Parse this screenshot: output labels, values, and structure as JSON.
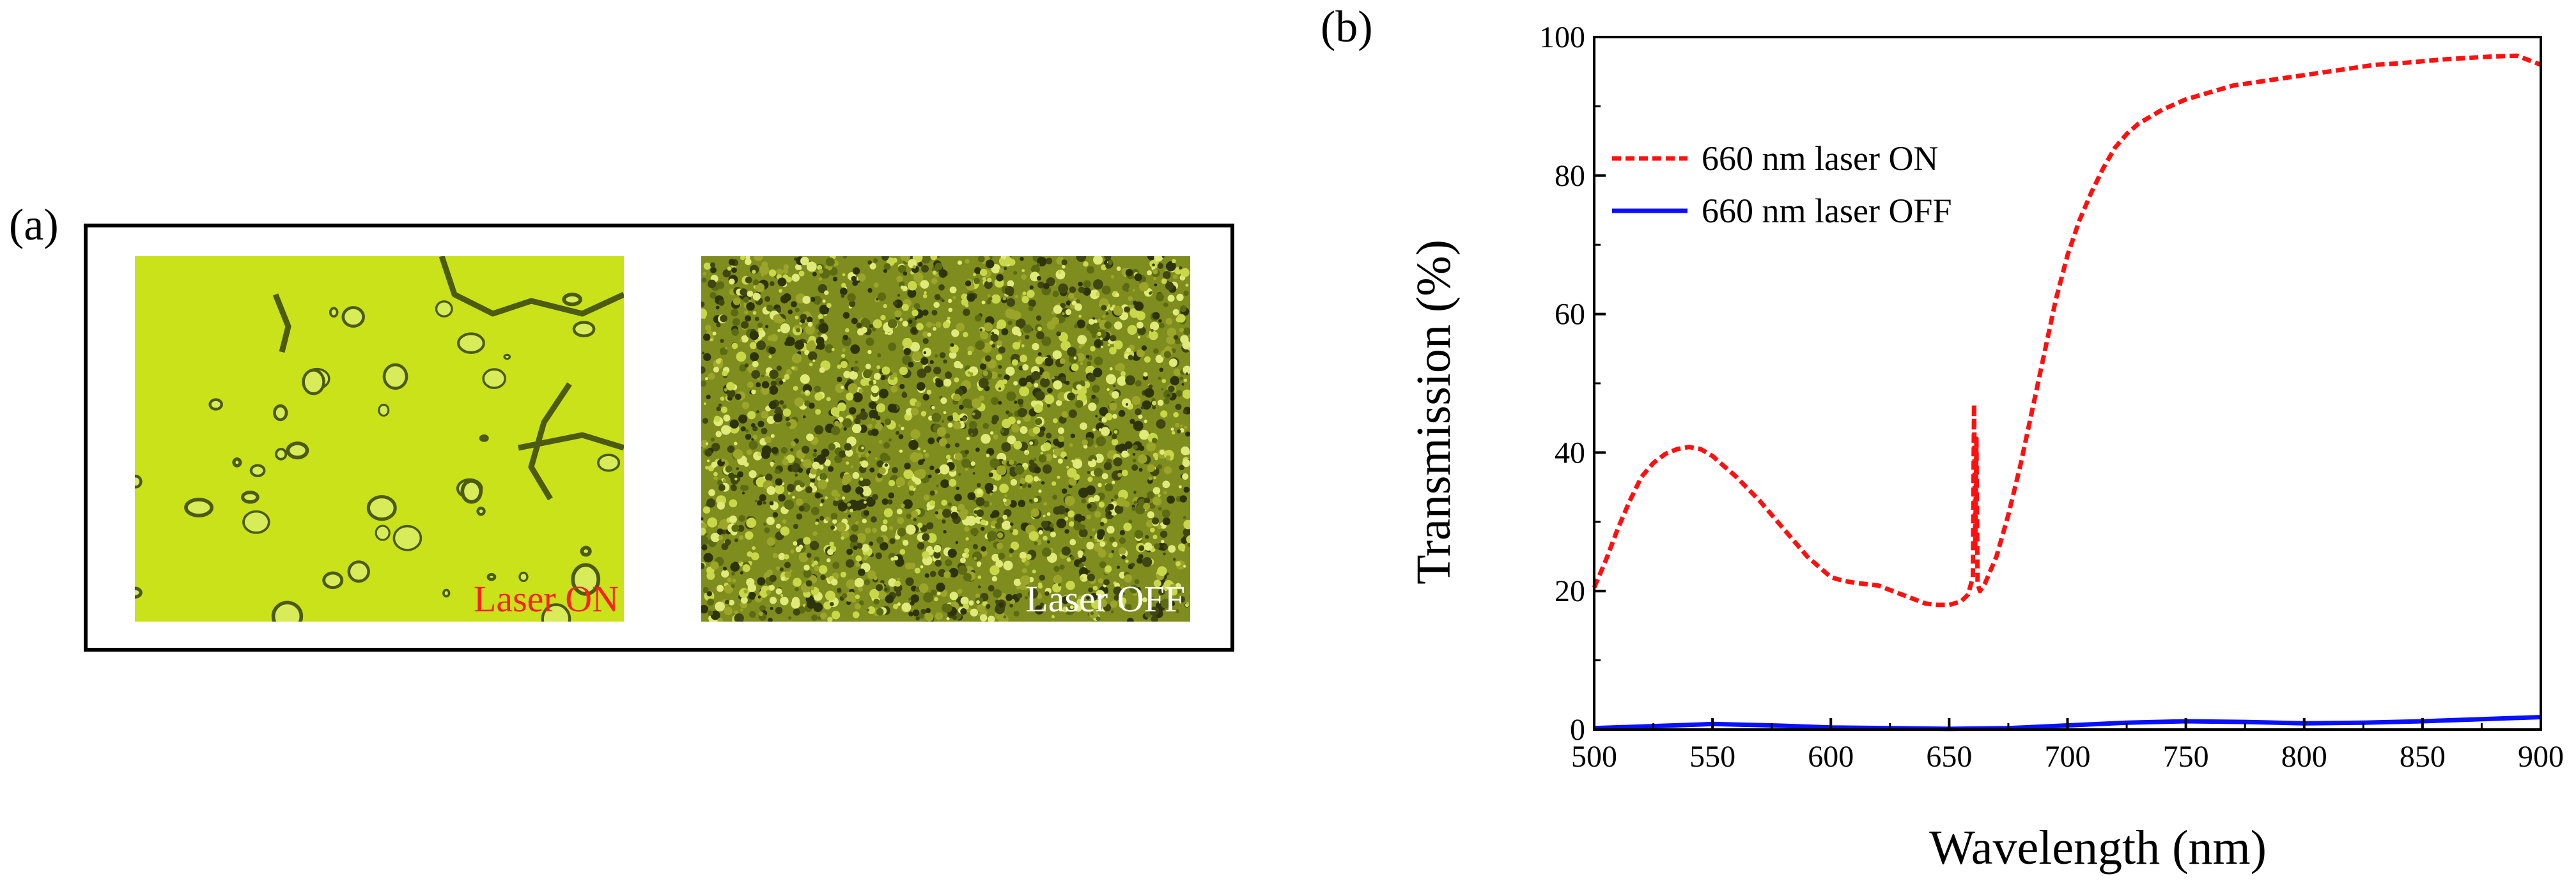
{
  "panels": {
    "a": {
      "label": "(a)"
    },
    "b": {
      "label": "(b)"
    }
  },
  "micrographs": [
    {
      "caption": "Laser ON",
      "caption_color": "#ff1f1f",
      "tone": "#c9e21a"
    },
    {
      "caption": "Laser OFF",
      "caption_color": "#ffffff",
      "tone": "#7f8c1e"
    }
  ],
  "colors": {
    "laser_on": "#ff1010",
    "laser_off": "#0a10ff",
    "axis": "#000000"
  },
  "chart_data": {
    "type": "line",
    "title": "",
    "xlabel": "Wavelength (nm)",
    "ylabel": "Transmission (%)",
    "xlim": [
      500,
      900
    ],
    "ylim": [
      0,
      100
    ],
    "xticks": [
      500,
      550,
      600,
      650,
      700,
      750,
      800,
      850,
      900
    ],
    "yticks": [
      0,
      20,
      40,
      60,
      80,
      100
    ],
    "legend": {
      "position": "top-left"
    },
    "series": [
      {
        "name": "660 nm laser ON",
        "style": "dashed",
        "x": [
          500,
          505,
          510,
          515,
          520,
          525,
          530,
          535,
          540,
          545,
          550,
          555,
          560,
          570,
          580,
          590,
          600,
          605,
          610,
          620,
          630,
          640,
          645,
          650,
          655,
          658,
          660,
          660.5,
          661,
          661.5,
          662,
          663,
          665,
          670,
          675,
          680,
          685,
          690,
          695,
          700,
          705,
          710,
          715,
          720,
          725,
          730,
          740,
          750,
          760,
          770,
          780,
          790,
          800,
          810,
          820,
          830,
          840,
          850,
          860,
          870,
          880,
          890,
          900
        ],
        "y": [
          20.5,
          24.5,
          29,
          33,
          36.5,
          38.5,
          39.8,
          40.5,
          40.8,
          40.5,
          39.5,
          38,
          36.5,
          33,
          29,
          25,
          22,
          21.5,
          21.2,
          20.8,
          19.5,
          18.2,
          18,
          18,
          18.5,
          19.5,
          22,
          47,
          26,
          42,
          21,
          20,
          21,
          25,
          31,
          38,
          46,
          54,
          62,
          68.5,
          73.5,
          77.5,
          81,
          84,
          86,
          87.5,
          89.5,
          91,
          92,
          93,
          93.5,
          94,
          94.5,
          95,
          95.5,
          96,
          96.2,
          96.5,
          96.8,
          97,
          97.2,
          97.3,
          96
        ]
      },
      {
        "name": "660 nm laser OFF",
        "style": "solid",
        "x": [
          500,
          525,
          550,
          575,
          600,
          625,
          650,
          675,
          700,
          725,
          750,
          775,
          800,
          825,
          850,
          875,
          900
        ],
        "y": [
          0.2,
          0.5,
          0.8,
          0.6,
          0.3,
          0.2,
          0.1,
          0.2,
          0.6,
          1.0,
          1.2,
          1.1,
          0.9,
          1.0,
          1.2,
          1.5,
          1.8
        ]
      }
    ]
  }
}
